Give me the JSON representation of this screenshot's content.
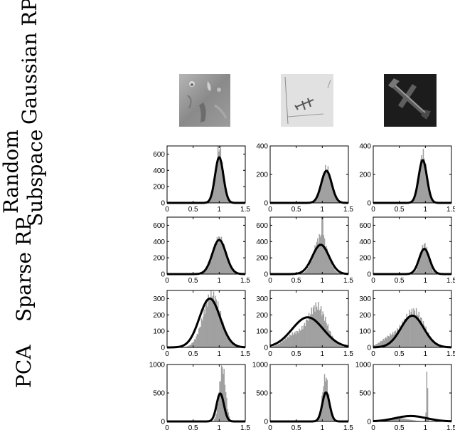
{
  "row_labels": {
    "gaussian_rp": "Gaussian RP",
    "random_subspace_line1": "Random",
    "random_subspace_line2": "Subspace",
    "sparse_rp": "Sparse RP",
    "pca": "PCA"
  },
  "thumbnails": [
    {
      "icon": "terrain-image-icon",
      "tone": "#8e8e8e"
    },
    {
      "icon": "airplane-light-image-icon",
      "tone": "#d8d8d8"
    },
    {
      "icon": "airplane-dark-image-icon",
      "tone": "#1a1a1a"
    }
  ],
  "colors": {
    "bar": "#a0a0a0",
    "curve": "#000000"
  },
  "chart_data": [
    {
      "type": "bar",
      "row": "Gaussian RP",
      "col": 1,
      "xlim": [
        0,
        1.5
      ],
      "xticks": [
        "0",
        "0.5",
        "1",
        "1.5"
      ],
      "ylim": [
        0,
        700
      ],
      "yticks": [
        "0",
        "200",
        "400",
        "600"
      ],
      "bars": {
        "mean": 1.0,
        "sd": 0.07,
        "peak": 680
      },
      "fit": {
        "mean": 1.0,
        "sd": 0.08,
        "peak": 560
      }
    },
    {
      "type": "bar",
      "row": "Gaussian RP",
      "col": 2,
      "xlim": [
        0,
        1.5
      ],
      "xticks": [
        "0",
        "0.5",
        "1",
        "1.5"
      ],
      "ylim": [
        0,
        400
      ],
      "yticks": [
        "0",
        "200",
        "400"
      ],
      "bars": {
        "mean": 1.08,
        "sd": 0.09,
        "peak": 245
      },
      "fit": {
        "mean": 1.08,
        "sd": 0.1,
        "peak": 225
      }
    },
    {
      "type": "bar",
      "row": "Gaussian RP",
      "col": 3,
      "xlim": [
        0,
        1.5
      ],
      "xticks": [
        "0",
        "0.5",
        "1",
        "1.5"
      ],
      "ylim": [
        0,
        400
      ],
      "yticks": [
        "0",
        "200",
        "400"
      ],
      "bars": {
        "mean": 0.95,
        "sd": 0.07,
        "peak": 345
      },
      "fit": {
        "mean": 0.95,
        "sd": 0.08,
        "peak": 300
      }
    },
    {
      "type": "bar",
      "row": "Random Subspace",
      "col": 1,
      "xlim": [
        0,
        1.5
      ],
      "xticks": [
        "0",
        "0.5",
        "1",
        "1.5"
      ],
      "ylim": [
        0,
        700
      ],
      "yticks": [
        "0",
        "200",
        "400",
        "600"
      ],
      "bars": {
        "mean": 1.0,
        "sd": 0.12,
        "peak": 440
      },
      "fit": {
        "mean": 1.0,
        "sd": 0.13,
        "peak": 420
      }
    },
    {
      "type": "bar",
      "row": "Random Subspace",
      "col": 2,
      "xlim": [
        0,
        1.5
      ],
      "xticks": [
        "0",
        "0.5",
        "1",
        "1.5"
      ],
      "ylim": [
        0,
        700
      ],
      "yticks": [
        "0",
        "200",
        "400",
        "600"
      ],
      "bars": {
        "mean": 0.97,
        "sd": 0.13,
        "peak": 460,
        "spike_x": 1.0,
        "spike_h": 620
      },
      "fit": {
        "mean": 0.97,
        "sd": 0.16,
        "peak": 360
      }
    },
    {
      "type": "bar",
      "row": "Random Subspace",
      "col": 3,
      "xlim": [
        0,
        1.5
      ],
      "xticks": [
        "0",
        "0.5",
        "1",
        "1.5"
      ],
      "ylim": [
        0,
        700
      ],
      "yticks": [
        "0",
        "200",
        "400",
        "600"
      ],
      "bars": {
        "mean": 0.98,
        "sd": 0.08,
        "peak": 360
      },
      "fit": {
        "mean": 0.98,
        "sd": 0.1,
        "peak": 310
      }
    },
    {
      "type": "bar",
      "row": "Sparse RP",
      "col": 1,
      "xlim": [
        0,
        1.5
      ],
      "xticks": [
        "0",
        "0.5",
        "1",
        "1.5"
      ],
      "ylim": [
        0,
        350
      ],
      "yticks": [
        "0",
        "100",
        "200",
        "300"
      ],
      "bars": {
        "mean": 0.86,
        "sd": 0.17,
        "peak": 320
      },
      "fit": {
        "mean": 0.82,
        "sd": 0.2,
        "peak": 300
      }
    },
    {
      "type": "bar",
      "row": "Sparse RP",
      "col": 2,
      "xlim": [
        0,
        1.5
      ],
      "xticks": [
        "0",
        "0.5",
        "1",
        "1.5"
      ],
      "ylim": [
        0,
        350
      ],
      "yticks": [
        "0",
        "100",
        "200",
        "300"
      ],
      "bars": {
        "mean": 0.9,
        "sd": 0.18,
        "peak": 250,
        "shoulder": 75
      },
      "fit": {
        "mean": 0.72,
        "sd": 0.3,
        "peak": 185
      }
    },
    {
      "type": "bar",
      "row": "Sparse RP",
      "col": 3,
      "xlim": [
        0,
        1.5
      ],
      "xticks": [
        "0",
        "0.5",
        "1",
        "1.5"
      ],
      "ylim": [
        0,
        350
      ],
      "yticks": [
        "0",
        "100",
        "200",
        "300"
      ],
      "bars": {
        "mean": 0.78,
        "sd": 0.2,
        "peak": 220,
        "shoulder": 60
      },
      "fit": {
        "mean": 0.75,
        "sd": 0.22,
        "peak": 195
      }
    },
    {
      "type": "bar",
      "row": "PCA",
      "col": 1,
      "xlim": [
        0,
        1.5
      ],
      "xticks": [
        "0",
        "0.5",
        "1",
        "1.5"
      ],
      "ylim": [
        0,
        1000
      ],
      "yticks": [
        "0",
        "500",
        "1000"
      ],
      "bars": {
        "mean": 1.06,
        "sd": 0.06,
        "peak": 950
      },
      "fit": {
        "mean": 1.02,
        "sd": 0.07,
        "peak": 490
      }
    },
    {
      "type": "bar",
      "row": "PCA",
      "col": 2,
      "xlim": [
        0,
        1.5
      ],
      "xticks": [
        "0",
        "0.5",
        "1",
        "1.5"
      ],
      "ylim": [
        0,
        1000
      ],
      "yticks": [
        "0",
        "500",
        "1000"
      ],
      "bars": {
        "mean": 1.06,
        "sd": 0.06,
        "peak": 780
      },
      "fit": {
        "mean": 1.07,
        "sd": 0.07,
        "peak": 510
      }
    },
    {
      "type": "bar",
      "row": "PCA",
      "col": 3,
      "xlim": [
        0,
        1.5
      ],
      "xticks": [
        "0",
        "0.5",
        "1",
        "1.5"
      ],
      "ylim": [
        0,
        1000
      ],
      "yticks": [
        "0",
        "500",
        "1000"
      ],
      "bars": {
        "mean": 0.45,
        "sd": 0.22,
        "peak": 60,
        "spike_x": 1.03,
        "spike_h": 900
      },
      "fit": {
        "mean": 0.72,
        "sd": 0.3,
        "peak": 95
      }
    }
  ]
}
